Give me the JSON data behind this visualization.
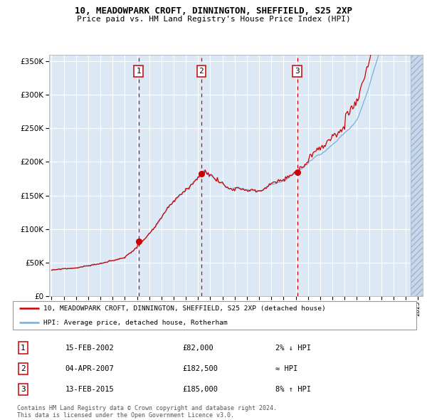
{
  "title": "10, MEADOWPARK CROFT, DINNINGTON, SHEFFIELD, S25 2XP",
  "subtitle": "Price paid vs. HM Land Registry's House Price Index (HPI)",
  "bg_color": "#dce9f5",
  "grid_color": "#ffffff",
  "red_line_color": "#cc0000",
  "blue_line_color": "#7bafd4",
  "sale_points": [
    {
      "date_num": 2002.12,
      "price": 82000,
      "label": "1"
    },
    {
      "date_num": 2007.27,
      "price": 182500,
      "label": "2"
    },
    {
      "date_num": 2015.12,
      "price": 185000,
      "label": "3"
    }
  ],
  "vline_dates": [
    2002.12,
    2007.27,
    2015.12
  ],
  "legend_entries": [
    {
      "color": "#cc0000",
      "label": "10, MEADOWPARK CROFT, DINNINGTON, SHEFFIELD, S25 2XP (detached house)"
    },
    {
      "color": "#7bafd4",
      "label": "HPI: Average price, detached house, Rotherham"
    }
  ],
  "table_rows": [
    {
      "num": "1",
      "date": "15-FEB-2002",
      "price": "£82,000",
      "relation": "2% ↓ HPI"
    },
    {
      "num": "2",
      "date": "04-APR-2007",
      "price": "£182,500",
      "relation": "≈ HPI"
    },
    {
      "num": "3",
      "date": "13-FEB-2015",
      "price": "£185,000",
      "relation": "8% ↑ HPI"
    }
  ],
  "footnote": "Contains HM Land Registry data © Crown copyright and database right 2024.\nThis data is licensed under the Open Government Licence v3.0.",
  "ylim": [
    0,
    360000
  ],
  "yticks": [
    0,
    50000,
    100000,
    150000,
    200000,
    250000,
    300000,
    350000
  ],
  "xlim_start": 1994.8,
  "xlim_end": 2025.4,
  "xticks": [
    1995,
    1996,
    1997,
    1998,
    1999,
    2000,
    2001,
    2002,
    2003,
    2004,
    2005,
    2006,
    2007,
    2008,
    2009,
    2010,
    2011,
    2012,
    2013,
    2014,
    2015,
    2016,
    2017,
    2018,
    2019,
    2020,
    2021,
    2022,
    2023,
    2024,
    2025
  ]
}
